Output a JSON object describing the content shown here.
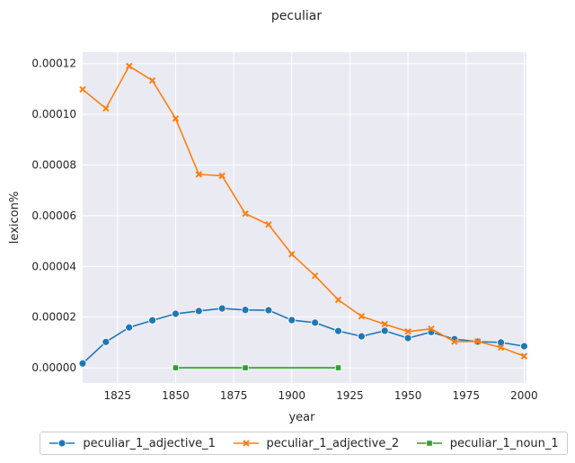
{
  "chart_data": {
    "type": "line",
    "title": "peculiar",
    "xlabel": "year",
    "ylabel": "lexicon%",
    "xlim": [
      1810,
      2001
    ],
    "ylim": [
      -6e-06,
      0.0001245
    ],
    "xticks": [
      1825,
      1850,
      1875,
      1900,
      1925,
      1950,
      1975,
      2000
    ],
    "yticks": [
      0,
      2e-05,
      4e-05,
      6e-05,
      8e-05,
      0.0001,
      0.00012
    ],
    "ytick_labels": [
      "0.00000",
      "0.00002",
      "0.00004",
      "0.00006",
      "0.00008",
      "0.00010",
      "0.00012"
    ],
    "grid": true,
    "legend_position": "bottom-center",
    "series": [
      {
        "name": "peculiar_1_adjective_1",
        "color": "#1f77b4",
        "marker": "circle",
        "x": [
          1810,
          1820,
          1830,
          1840,
          1850,
          1860,
          1870,
          1880,
          1890,
          1900,
          1910,
          1920,
          1930,
          1940,
          1950,
          1960,
          1970,
          1980,
          1990,
          2000
        ],
        "values": [
          1.7e-06,
          1.02e-05,
          1.59e-05,
          1.87e-05,
          2.13e-05,
          2.24e-05,
          2.34e-05,
          2.28e-05,
          2.27e-05,
          1.88e-05,
          1.78e-05,
          1.45e-05,
          1.24e-05,
          1.46e-05,
          1.17e-05,
          1.41e-05,
          1.13e-05,
          1.03e-05,
          1e-05,
          8.5e-06
        ]
      },
      {
        "name": "peculiar_1_adjective_2",
        "color": "#ff7f0e",
        "marker": "x",
        "x": [
          1810,
          1820,
          1830,
          1840,
          1850,
          1860,
          1870,
          1880,
          1890,
          1900,
          1910,
          1920,
          1930,
          1940,
          1950,
          1960,
          1970,
          1980,
          1990,
          2000
        ],
        "values": [
          0.0001098,
          0.0001023,
          0.000119,
          0.0001133,
          9.83e-05,
          7.63e-05,
          7.57e-05,
          6.08e-05,
          5.65e-05,
          4.48e-05,
          3.63e-05,
          2.68e-05,
          2.03e-05,
          1.72e-05,
          1.43e-05,
          1.54e-05,
          1.03e-05,
          1.04e-05,
          8e-06,
          4.6e-06
        ]
      },
      {
        "name": "peculiar_1_noun_1",
        "color": "#2ca02c",
        "marker": "square",
        "x": [
          1850,
          1880,
          1920
        ],
        "values": [
          0.0,
          0.0,
          0.0
        ]
      }
    ]
  }
}
